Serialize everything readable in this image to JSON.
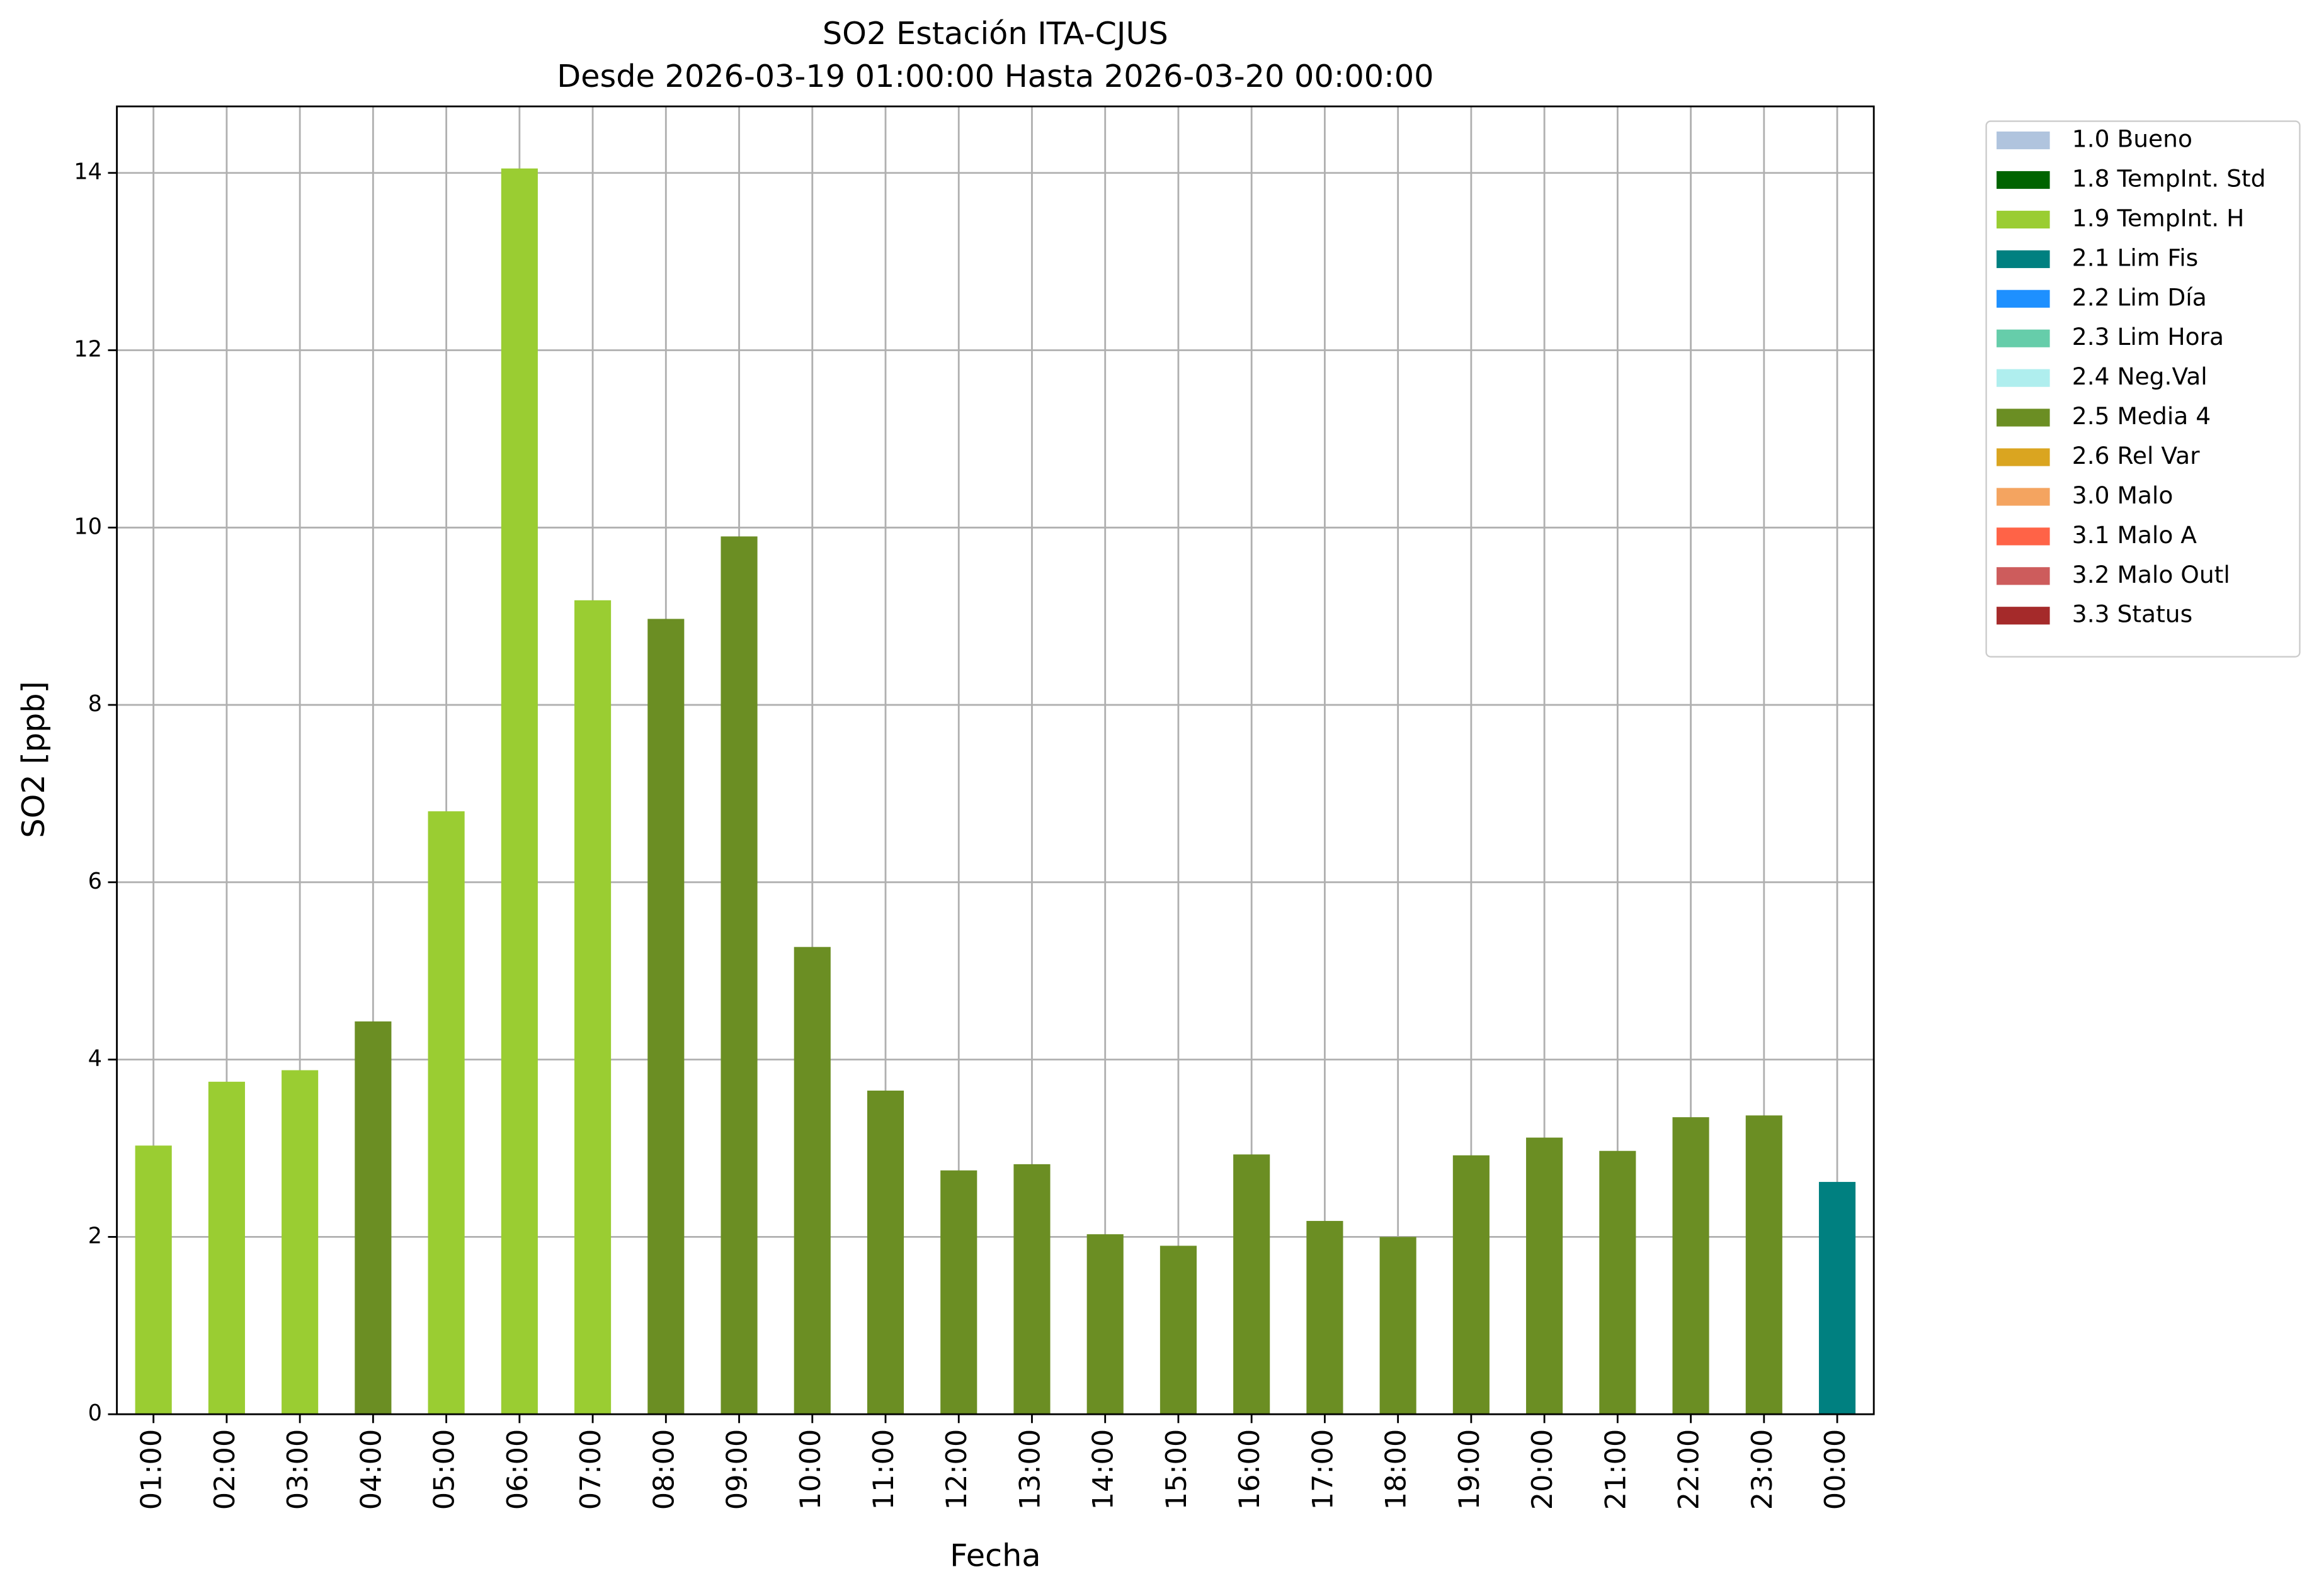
{
  "chart_data": {
    "type": "bar",
    "stacked": true,
    "title": "SO2 Estación ITA-CJUS",
    "subtitle": "Desde 2026-03-19 01:00:00 Hasta 2026-03-20 00:00:00",
    "x_label": "Fecha",
    "y_label": "SO2 [ppb]",
    "categories": [
      "01:00",
      "02:00",
      "03:00",
      "04:00",
      "05:00",
      "06:00",
      "07:00",
      "08:00",
      "09:00",
      "10:00",
      "11:00",
      "12:00",
      "13:00",
      "14:00",
      "15:00",
      "16:00",
      "17:00",
      "18:00",
      "19:00",
      "20:00",
      "21:00",
      "22:00",
      "23:00",
      "00:00"
    ],
    "series": [
      {
        "name": "1.0 Bueno",
        "color": "#b0c4de",
        "values": [
          null,
          null,
          null,
          null,
          null,
          null,
          null,
          null,
          null,
          null,
          null,
          null,
          null,
          null,
          null,
          null,
          null,
          null,
          null,
          null,
          null,
          null,
          null,
          null
        ]
      },
      {
        "name": "1.8 TempInt. Std",
        "color": "#006400",
        "values": [
          null,
          null,
          null,
          null,
          null,
          null,
          null,
          null,
          null,
          null,
          null,
          null,
          null,
          null,
          null,
          null,
          null,
          null,
          null,
          null,
          null,
          null,
          null,
          null
        ]
      },
      {
        "name": "1.9 TempInt. H",
        "color": "#9acd32",
        "values": [
          3.03,
          3.75,
          3.88,
          null,
          6.8,
          14.05,
          9.18,
          null,
          null,
          null,
          null,
          null,
          null,
          null,
          null,
          null,
          null,
          null,
          null,
          null,
          null,
          null,
          null,
          null
        ]
      },
      {
        "name": "2.1 Lim Fis",
        "color": "#008080",
        "values": [
          null,
          null,
          null,
          null,
          null,
          null,
          null,
          null,
          null,
          null,
          null,
          null,
          null,
          null,
          null,
          null,
          null,
          null,
          null,
          null,
          null,
          null,
          null,
          2.62
        ]
      },
      {
        "name": "2.2 Lim Día",
        "color": "#1e90ff",
        "values": [
          null,
          null,
          null,
          null,
          null,
          null,
          null,
          null,
          null,
          null,
          null,
          null,
          null,
          null,
          null,
          null,
          null,
          null,
          null,
          null,
          null,
          null,
          null,
          null
        ]
      },
      {
        "name": "2.3 Lim Hora",
        "color": "#66cdaa",
        "values": [
          null,
          null,
          null,
          null,
          null,
          null,
          null,
          null,
          null,
          null,
          null,
          null,
          null,
          null,
          null,
          null,
          null,
          null,
          null,
          null,
          null,
          null,
          null,
          null
        ]
      },
      {
        "name": "2.4 Neg.Val",
        "color": "#afeeee",
        "values": [
          null,
          null,
          null,
          null,
          null,
          null,
          null,
          null,
          null,
          null,
          null,
          null,
          null,
          null,
          null,
          null,
          null,
          null,
          null,
          null,
          null,
          null,
          null,
          null
        ]
      },
      {
        "name": "2.5 Media 4",
        "color": "#6b8e23",
        "values": [
          null,
          null,
          null,
          4.43,
          null,
          null,
          null,
          8.97,
          9.9,
          5.27,
          3.65,
          2.75,
          2.82,
          2.03,
          1.9,
          2.93,
          2.18,
          2.0,
          2.92,
          3.12,
          2.97,
          3.35,
          3.37,
          null
        ]
      },
      {
        "name": "2.6 Rel Var",
        "color": "#daa520",
        "values": [
          null,
          null,
          null,
          null,
          null,
          null,
          null,
          null,
          null,
          null,
          null,
          null,
          null,
          null,
          null,
          null,
          null,
          null,
          null,
          null,
          null,
          null,
          null,
          null
        ]
      },
      {
        "name": "3.0 Malo",
        "color": "#f4a460",
        "values": [
          null,
          null,
          null,
          null,
          null,
          null,
          null,
          null,
          null,
          null,
          null,
          null,
          null,
          null,
          null,
          null,
          null,
          null,
          null,
          null,
          null,
          null,
          null,
          null
        ]
      },
      {
        "name": "3.1 Malo A",
        "color": "#ff6347",
        "values": [
          null,
          null,
          null,
          null,
          null,
          null,
          null,
          null,
          null,
          null,
          null,
          null,
          null,
          null,
          null,
          null,
          null,
          null,
          null,
          null,
          null,
          null,
          null,
          null
        ]
      },
      {
        "name": "3.2 Malo Outl",
        "color": "#cd5c5c",
        "values": [
          null,
          null,
          null,
          null,
          null,
          null,
          null,
          null,
          null,
          null,
          null,
          null,
          null,
          null,
          null,
          null,
          null,
          null,
          null,
          null,
          null,
          null,
          null,
          null
        ]
      },
      {
        "name": "3.3 Status",
        "color": "#a52a2a",
        "values": [
          null,
          null,
          null,
          null,
          null,
          null,
          null,
          null,
          null,
          null,
          null,
          null,
          null,
          null,
          null,
          null,
          null,
          null,
          null,
          null,
          null,
          null,
          null,
          null
        ]
      }
    ],
    "ylim": [
      0,
      14.75
    ],
    "yticks": [
      0,
      2,
      4,
      6,
      8,
      10,
      12,
      14
    ],
    "grid": true,
    "legend": "outside-upper-right"
  }
}
